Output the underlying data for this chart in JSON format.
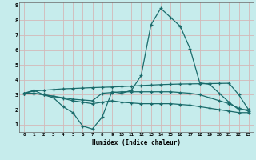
{
  "xlabel": "Humidex (Indice chaleur)",
  "background_color": "#c6ecec",
  "grid_color": "#d4b8b8",
  "line_color": "#1a6b6b",
  "xlim": [
    -0.5,
    23.5
  ],
  "ylim": [
    0.5,
    9.2
  ],
  "xticks": [
    0,
    1,
    2,
    3,
    4,
    5,
    6,
    7,
    8,
    9,
    10,
    11,
    12,
    13,
    14,
    15,
    16,
    17,
    18,
    19,
    20,
    21,
    22,
    23
  ],
  "yticks": [
    1,
    2,
    3,
    4,
    5,
    6,
    7,
    8,
    9
  ],
  "series": {
    "line1": {
      "x": [
        0,
        1,
        2,
        3,
        4,
        5,
        6,
        7,
        8,
        9,
        10,
        11,
        12,
        13,
        14,
        15,
        16,
        17,
        18,
        19,
        20,
        21,
        22,
        23
      ],
      "y": [
        3.1,
        3.3,
        3.0,
        2.8,
        2.2,
        1.8,
        0.9,
        0.7,
        1.5,
        3.2,
        3.1,
        3.3,
        4.3,
        7.7,
        8.8,
        8.2,
        7.6,
        6.1,
        3.8,
        3.7,
        3.1,
        2.5,
        2.0,
        2.0
      ]
    },
    "line2": {
      "x": [
        0,
        1,
        2,
        3,
        4,
        5,
        6,
        7,
        8,
        9,
        10,
        11,
        12,
        13,
        14,
        15,
        16,
        17,
        18,
        19,
        20,
        21,
        22,
        23
      ],
      "y": [
        3.1,
        3.25,
        3.3,
        3.35,
        3.4,
        3.42,
        3.45,
        3.48,
        3.5,
        3.52,
        3.55,
        3.58,
        3.62,
        3.65,
        3.68,
        3.7,
        3.72,
        3.73,
        3.74,
        3.75,
        3.76,
        3.77,
        3.0,
        2.0
      ]
    },
    "line3": {
      "x": [
        0,
        1,
        2,
        3,
        4,
        5,
        6,
        7,
        8,
        9,
        10,
        11,
        12,
        13,
        14,
        15,
        16,
        17,
        18,
        19,
        20,
        21,
        22,
        23
      ],
      "y": [
        3.1,
        3.1,
        3.0,
        2.9,
        2.8,
        2.7,
        2.65,
        2.6,
        3.1,
        3.15,
        3.2,
        3.2,
        3.2,
        3.2,
        3.2,
        3.2,
        3.15,
        3.1,
        3.0,
        2.8,
        2.6,
        2.4,
        2.1,
        1.9
      ]
    },
    "line4": {
      "x": [
        0,
        1,
        2,
        3,
        4,
        5,
        6,
        7,
        8,
        9,
        10,
        11,
        12,
        13,
        14,
        15,
        16,
        17,
        18,
        19,
        20,
        21,
        22,
        23
      ],
      "y": [
        3.1,
        3.1,
        3.0,
        2.9,
        2.75,
        2.6,
        2.5,
        2.4,
        2.5,
        2.6,
        2.5,
        2.45,
        2.4,
        2.4,
        2.4,
        2.4,
        2.35,
        2.3,
        2.2,
        2.1,
        2.0,
        1.9,
        1.8,
        1.8
      ]
    }
  }
}
